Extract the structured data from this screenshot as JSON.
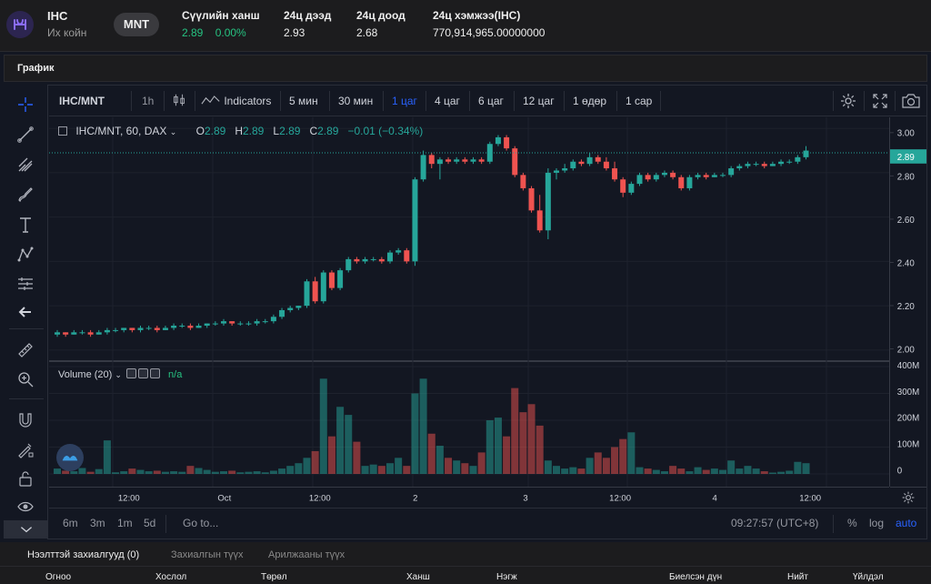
{
  "ticker": {
    "coin_name": "IHC",
    "coin_sub": "Их койн",
    "quote_pill": "MNT",
    "last_price_label": "Сүүлийн ханш",
    "last_price": "2.89",
    "change_pct": "0.00%",
    "high_label": "24ц дээд",
    "high": "2.93",
    "low_label": "24ц доод",
    "low": "2.68",
    "volume_label": "24ц хэмжээ(IHC)",
    "volume": "770,914,965.00000000"
  },
  "section": {
    "title": "График"
  },
  "toolbar": {
    "symbol": "IHC/MNT",
    "interval": "1h",
    "indicators_label": "Indicators",
    "intervals": [
      "5 мин",
      "30 мин",
      "1 цаг",
      "4 цаг",
      "6 цаг",
      "12 цаг",
      "1 өдөр",
      "1 сар"
    ],
    "active_interval": "1 цаг",
    "icons": [
      "candles-icon",
      "indicators-icon",
      "settings-icon",
      "fullscreen-icon",
      "camera-icon"
    ]
  },
  "legend": {
    "symbol_text": "IHC/MNT, 60, DAX",
    "o_label": "O",
    "o": "2.89",
    "h_label": "H",
    "h": "2.89",
    "l_label": "L",
    "l": "2.89",
    "c_label": "C",
    "c": "2.89",
    "change": "−0.01 (−0.34%)"
  },
  "volume_legend": {
    "label": "Volume (20)",
    "value": "n/a"
  },
  "price_tag": "2.89",
  "colors": {
    "up": "#26a69a",
    "down": "#ef5350",
    "active": "#2962ff",
    "accent_green": "#26c281"
  },
  "chart_data": {
    "type": "candlestick",
    "price_ticks": [
      "3.00",
      "2.80",
      "2.60",
      "2.40",
      "2.20",
      "2.00"
    ],
    "volume_ticks": [
      "400M",
      "300M",
      "200M",
      "100M",
      "0"
    ],
    "time_ticks": [
      "12:00",
      "Oct",
      "12:00",
      "2",
      "3",
      "12:00",
      "4",
      "12:00"
    ],
    "ylim": [
      1.95,
      3.05
    ],
    "volume_ylim": [
      0,
      400
    ],
    "last_price_line": 2.89,
    "candles": [
      {
        "o": 2.07,
        "h": 2.09,
        "l": 2.06,
        "c": 2.08,
        "v": 20
      },
      {
        "o": 2.08,
        "h": 2.08,
        "l": 2.06,
        "c": 2.07,
        "v": 12
      },
      {
        "o": 2.07,
        "h": 2.09,
        "l": 2.07,
        "c": 2.08,
        "v": 10
      },
      {
        "o": 2.08,
        "h": 2.09,
        "l": 2.07,
        "c": 2.08,
        "v": 22
      },
      {
        "o": 2.08,
        "h": 2.09,
        "l": 2.06,
        "c": 2.07,
        "v": 8
      },
      {
        "o": 2.07,
        "h": 2.09,
        "l": 2.07,
        "c": 2.08,
        "v": 18
      },
      {
        "o": 2.08,
        "h": 2.1,
        "l": 2.07,
        "c": 2.09,
        "v": 125
      },
      {
        "o": 2.09,
        "h": 2.1,
        "l": 2.08,
        "c": 2.09,
        "v": 6
      },
      {
        "o": 2.09,
        "h": 2.1,
        "l": 2.08,
        "c": 2.1,
        "v": 10
      },
      {
        "o": 2.1,
        "h": 2.1,
        "l": 2.08,
        "c": 2.09,
        "v": 20
      },
      {
        "o": 2.09,
        "h": 2.11,
        "l": 2.08,
        "c": 2.1,
        "v": 15
      },
      {
        "o": 2.1,
        "h": 2.11,
        "l": 2.09,
        "c": 2.1,
        "v": 10
      },
      {
        "o": 2.1,
        "h": 2.11,
        "l": 2.08,
        "c": 2.09,
        "v": 12
      },
      {
        "o": 2.09,
        "h": 2.11,
        "l": 2.09,
        "c": 2.1,
        "v": 8
      },
      {
        "o": 2.1,
        "h": 2.12,
        "l": 2.09,
        "c": 2.11,
        "v": 10
      },
      {
        "o": 2.11,
        "h": 2.12,
        "l": 2.1,
        "c": 2.11,
        "v": 8
      },
      {
        "o": 2.11,
        "h": 2.12,
        "l": 2.09,
        "c": 2.1,
        "v": 30
      },
      {
        "o": 2.1,
        "h": 2.12,
        "l": 2.1,
        "c": 2.11,
        "v": 22
      },
      {
        "o": 2.11,
        "h": 2.12,
        "l": 2.1,
        "c": 2.12,
        "v": 15
      },
      {
        "o": 2.12,
        "h": 2.13,
        "l": 2.11,
        "c": 2.12,
        "v": 8
      },
      {
        "o": 2.12,
        "h": 2.14,
        "l": 2.11,
        "c": 2.13,
        "v": 10
      },
      {
        "o": 2.13,
        "h": 2.13,
        "l": 2.11,
        "c": 2.12,
        "v": 12
      },
      {
        "o": 2.12,
        "h": 2.13,
        "l": 2.11,
        "c": 2.12,
        "v": 6
      },
      {
        "o": 2.12,
        "h": 2.13,
        "l": 2.11,
        "c": 2.12,
        "v": 8
      },
      {
        "o": 2.12,
        "h": 2.14,
        "l": 2.11,
        "c": 2.13,
        "v": 10
      },
      {
        "o": 2.13,
        "h": 2.14,
        "l": 2.12,
        "c": 2.13,
        "v": 6
      },
      {
        "o": 2.13,
        "h": 2.16,
        "l": 2.12,
        "c": 2.15,
        "v": 12
      },
      {
        "o": 2.15,
        "h": 2.19,
        "l": 2.14,
        "c": 2.18,
        "v": 20
      },
      {
        "o": 2.18,
        "h": 2.2,
        "l": 2.17,
        "c": 2.19,
        "v": 30
      },
      {
        "o": 2.19,
        "h": 2.2,
        "l": 2.18,
        "c": 2.2,
        "v": 40
      },
      {
        "o": 2.2,
        "h": 2.32,
        "l": 2.19,
        "c": 2.31,
        "v": 60
      },
      {
        "o": 2.31,
        "h": 2.33,
        "l": 2.21,
        "c": 2.22,
        "v": 85
      },
      {
        "o": 2.22,
        "h": 2.36,
        "l": 2.21,
        "c": 2.35,
        "v": 355
      },
      {
        "o": 2.35,
        "h": 2.36,
        "l": 2.27,
        "c": 2.28,
        "v": 140
      },
      {
        "o": 2.28,
        "h": 2.37,
        "l": 2.27,
        "c": 2.36,
        "v": 250
      },
      {
        "o": 2.36,
        "h": 2.42,
        "l": 2.35,
        "c": 2.41,
        "v": 220
      },
      {
        "o": 2.41,
        "h": 2.42,
        "l": 2.39,
        "c": 2.4,
        "v": 120
      },
      {
        "o": 2.4,
        "h": 2.42,
        "l": 2.39,
        "c": 2.41,
        "v": 30
      },
      {
        "o": 2.41,
        "h": 2.42,
        "l": 2.4,
        "c": 2.41,
        "v": 35
      },
      {
        "o": 2.41,
        "h": 2.42,
        "l": 2.39,
        "c": 2.4,
        "v": 30
      },
      {
        "o": 2.4,
        "h": 2.45,
        "l": 2.39,
        "c": 2.44,
        "v": 40
      },
      {
        "o": 2.44,
        "h": 2.46,
        "l": 2.43,
        "c": 2.45,
        "v": 60
      },
      {
        "o": 2.45,
        "h": 2.46,
        "l": 2.39,
        "c": 2.4,
        "v": 30
      },
      {
        "o": 2.4,
        "h": 2.78,
        "l": 2.38,
        "c": 2.77,
        "v": 300
      },
      {
        "o": 2.77,
        "h": 2.9,
        "l": 2.76,
        "c": 2.88,
        "v": 355
      },
      {
        "o": 2.88,
        "h": 2.89,
        "l": 2.82,
        "c": 2.84,
        "v": 150
      },
      {
        "o": 2.84,
        "h": 2.87,
        "l": 2.77,
        "c": 2.86,
        "v": 105
      },
      {
        "o": 2.86,
        "h": 2.87,
        "l": 2.84,
        "c": 2.85,
        "v": 60
      },
      {
        "o": 2.85,
        "h": 2.87,
        "l": 2.84,
        "c": 2.86,
        "v": 50
      },
      {
        "o": 2.86,
        "h": 2.87,
        "l": 2.84,
        "c": 2.85,
        "v": 40
      },
      {
        "o": 2.85,
        "h": 2.87,
        "l": 2.84,
        "c": 2.86,
        "v": 30
      },
      {
        "o": 2.86,
        "h": 2.87,
        "l": 2.84,
        "c": 2.85,
        "v": 80
      },
      {
        "o": 2.85,
        "h": 2.94,
        "l": 2.84,
        "c": 2.93,
        "v": 200
      },
      {
        "o": 2.93,
        "h": 2.97,
        "l": 2.92,
        "c": 2.96,
        "v": 210
      },
      {
        "o": 2.96,
        "h": 2.97,
        "l": 2.9,
        "c": 2.91,
        "v": 140
      },
      {
        "o": 2.91,
        "h": 2.92,
        "l": 2.78,
        "c": 2.79,
        "v": 320
      },
      {
        "o": 2.79,
        "h": 2.8,
        "l": 2.72,
        "c": 2.73,
        "v": 230
      },
      {
        "o": 2.73,
        "h": 2.74,
        "l": 2.62,
        "c": 2.63,
        "v": 260
      },
      {
        "o": 2.63,
        "h": 2.7,
        "l": 2.53,
        "c": 2.54,
        "v": 180
      },
      {
        "o": 2.54,
        "h": 2.82,
        "l": 2.5,
        "c": 2.8,
        "v": 50
      },
      {
        "o": 2.8,
        "h": 2.82,
        "l": 2.77,
        "c": 2.81,
        "v": 30
      },
      {
        "o": 2.81,
        "h": 2.84,
        "l": 2.8,
        "c": 2.82,
        "v": 20
      },
      {
        "o": 2.82,
        "h": 2.86,
        "l": 2.81,
        "c": 2.85,
        "v": 25
      },
      {
        "o": 2.85,
        "h": 2.86,
        "l": 2.83,
        "c": 2.84,
        "v": 20
      },
      {
        "o": 2.84,
        "h": 2.89,
        "l": 2.83,
        "c": 2.87,
        "v": 60
      },
      {
        "o": 2.87,
        "h": 2.88,
        "l": 2.84,
        "c": 2.85,
        "v": 80
      },
      {
        "o": 2.85,
        "h": 2.87,
        "l": 2.81,
        "c": 2.82,
        "v": 60
      },
      {
        "o": 2.82,
        "h": 2.85,
        "l": 2.76,
        "c": 2.77,
        "v": 100
      },
      {
        "o": 2.77,
        "h": 2.78,
        "l": 2.69,
        "c": 2.71,
        "v": 130
      },
      {
        "o": 2.71,
        "h": 2.76,
        "l": 2.7,
        "c": 2.75,
        "v": 155
      },
      {
        "o": 2.75,
        "h": 2.8,
        "l": 2.74,
        "c": 2.79,
        "v": 25
      },
      {
        "o": 2.79,
        "h": 2.8,
        "l": 2.76,
        "c": 2.77,
        "v": 20
      },
      {
        "o": 2.77,
        "h": 2.8,
        "l": 2.76,
        "c": 2.79,
        "v": 15
      },
      {
        "o": 2.79,
        "h": 2.81,
        "l": 2.78,
        "c": 2.8,
        "v": 10
      },
      {
        "o": 2.8,
        "h": 2.81,
        "l": 2.77,
        "c": 2.78,
        "v": 30
      },
      {
        "o": 2.78,
        "h": 2.79,
        "l": 2.72,
        "c": 2.73,
        "v": 20
      },
      {
        "o": 2.73,
        "h": 2.79,
        "l": 2.72,
        "c": 2.78,
        "v": 10
      },
      {
        "o": 2.78,
        "h": 2.8,
        "l": 2.77,
        "c": 2.79,
        "v": 25
      },
      {
        "o": 2.79,
        "h": 2.8,
        "l": 2.77,
        "c": 2.78,
        "v": 15
      },
      {
        "o": 2.78,
        "h": 2.8,
        "l": 2.78,
        "c": 2.79,
        "v": 20
      },
      {
        "o": 2.79,
        "h": 2.8,
        "l": 2.78,
        "c": 2.79,
        "v": 15
      },
      {
        "o": 2.79,
        "h": 2.83,
        "l": 2.78,
        "c": 2.82,
        "v": 50
      },
      {
        "o": 2.82,
        "h": 2.84,
        "l": 2.81,
        "c": 2.83,
        "v": 20
      },
      {
        "o": 2.83,
        "h": 2.85,
        "l": 2.82,
        "c": 2.84,
        "v": 30
      },
      {
        "o": 2.84,
        "h": 2.85,
        "l": 2.83,
        "c": 2.84,
        "v": 20
      },
      {
        "o": 2.84,
        "h": 2.85,
        "l": 2.82,
        "c": 2.83,
        "v": 10
      },
      {
        "o": 2.83,
        "h": 2.85,
        "l": 2.83,
        "c": 2.84,
        "v": 5
      },
      {
        "o": 2.84,
        "h": 2.86,
        "l": 2.83,
        "c": 2.85,
        "v": 8
      },
      {
        "o": 2.85,
        "h": 2.86,
        "l": 2.84,
        "c": 2.85,
        "v": 12
      },
      {
        "o": 2.85,
        "h": 2.88,
        "l": 2.84,
        "c": 2.87,
        "v": 45
      },
      {
        "o": 2.87,
        "h": 2.92,
        "l": 2.86,
        "c": 2.9,
        "v": 40
      }
    ]
  },
  "bottom_bar": {
    "ranges": [
      "6m",
      "3m",
      "1m",
      "5d"
    ],
    "goto": "Go to...",
    "clock": "09:27:57 (UTC+8)",
    "percent": "%",
    "log": "log",
    "auto": "auto"
  },
  "orders": {
    "tabs": [
      "Нээлттэй захиалгууд (0)",
      "Захиалгын түүх",
      "Арилжааны түүх"
    ],
    "columns": [
      "Огноо",
      "Хослол",
      "Төрөл",
      "Ханш",
      "Нэгж",
      "Биелсэн дүн",
      "Нийт",
      "Үйлдэл"
    ]
  }
}
